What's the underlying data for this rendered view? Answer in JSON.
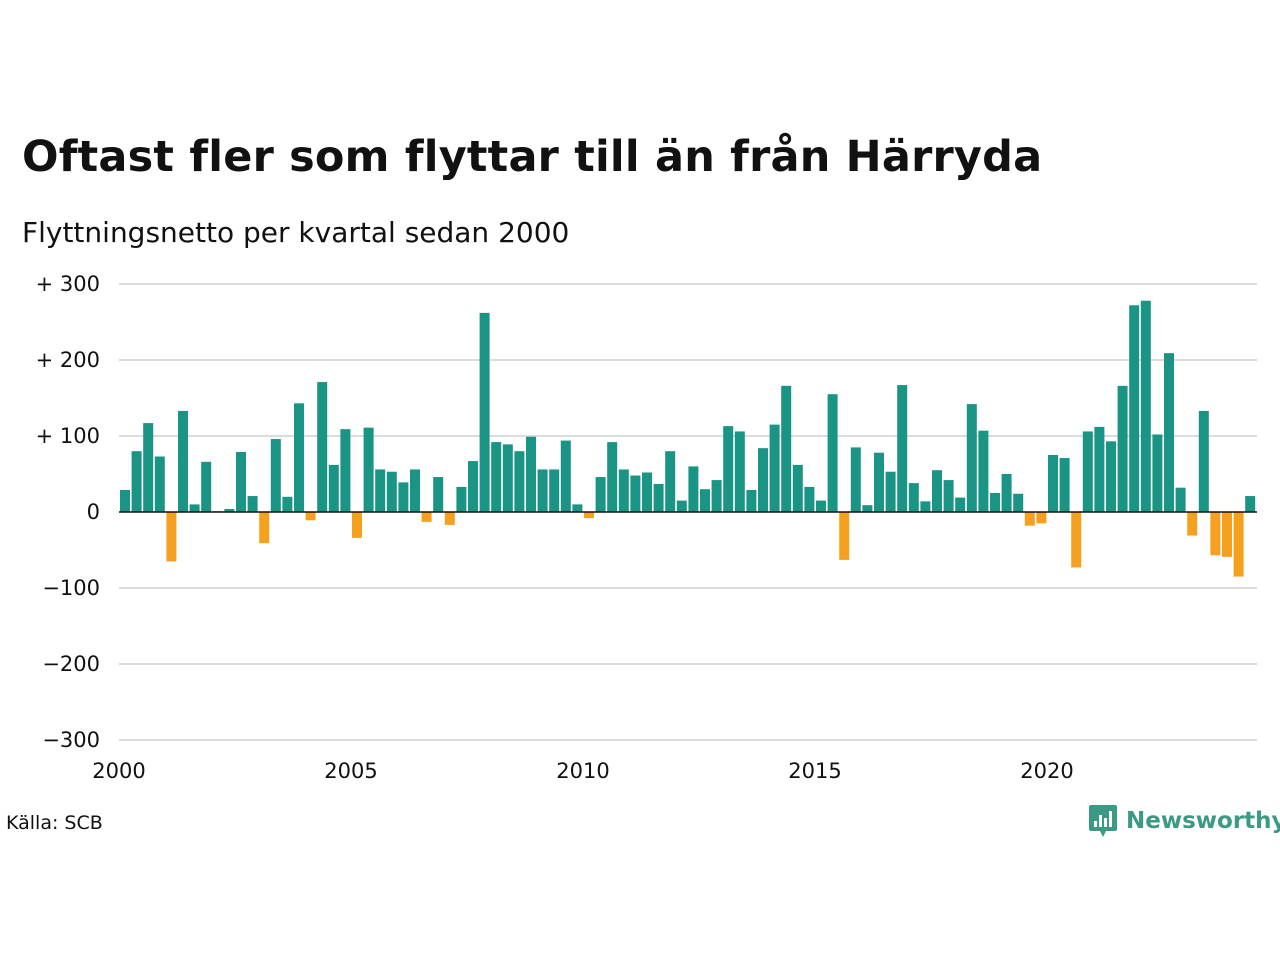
{
  "title": "Oftast fler som flyttar till än från Härryda",
  "subtitle": "Flyttningsnetto per kvartal sedan 2000",
  "source": "Källa: SCB",
  "brand": {
    "name": "Newsworthy",
    "color": "#3a9a85",
    "icon": "newsworthy-chart-bubble-icon"
  },
  "colors": {
    "positive": "#1a9484",
    "negative": "#f5a11f",
    "grid": "#dcdcdc",
    "baseline": "#111111"
  },
  "chart_data": {
    "type": "bar",
    "title": "Oftast fler som flyttar till än från Härryda",
    "subtitle": "Flyttningsnetto per kvartal sedan 2000",
    "xlabel": "",
    "ylabel": "",
    "ylim": [
      -300,
      300
    ],
    "yticks": [
      {
        "value": 300,
        "label": "+ 300"
      },
      {
        "value": 200,
        "label": "+ 200"
      },
      {
        "value": 100,
        "label": "+ 100"
      },
      {
        "value": 0,
        "label": "0"
      },
      {
        "value": -100,
        "label": "−100"
      },
      {
        "value": -200,
        "label": "−200"
      },
      {
        "value": -300,
        "label": "−300"
      }
    ],
    "xticks": [
      "2000",
      "2005",
      "2010",
      "2015",
      "2020"
    ],
    "x_start": "2000 Q1",
    "grid": true,
    "legend": "none",
    "values": [
      29,
      80,
      117,
      73,
      -65,
      133,
      10,
      66,
      1,
      4,
      79,
      21,
      -41,
      96,
      20,
      143,
      -11,
      171,
      62,
      109,
      -34,
      111,
      56,
      53,
      39,
      56,
      -13,
      46,
      -17,
      33,
      67,
      262,
      92,
      89,
      80,
      99,
      56,
      56,
      94,
      10,
      -8,
      46,
      92,
      56,
      48,
      52,
      37,
      80,
      15,
      60,
      30,
      42,
      113,
      106,
      29,
      84,
      115,
      166,
      62,
      33,
      15,
      155,
      -63,
      85,
      9,
      78,
      53,
      167,
      38,
      14,
      55,
      42,
      19,
      142,
      107,
      25,
      50,
      24,
      -18,
      -15,
      75,
      71,
      -73,
      106,
      112,
      93,
      166,
      272,
      278,
      102,
      209,
      32,
      -31,
      133,
      -57,
      -59,
      -85,
      21
    ]
  }
}
